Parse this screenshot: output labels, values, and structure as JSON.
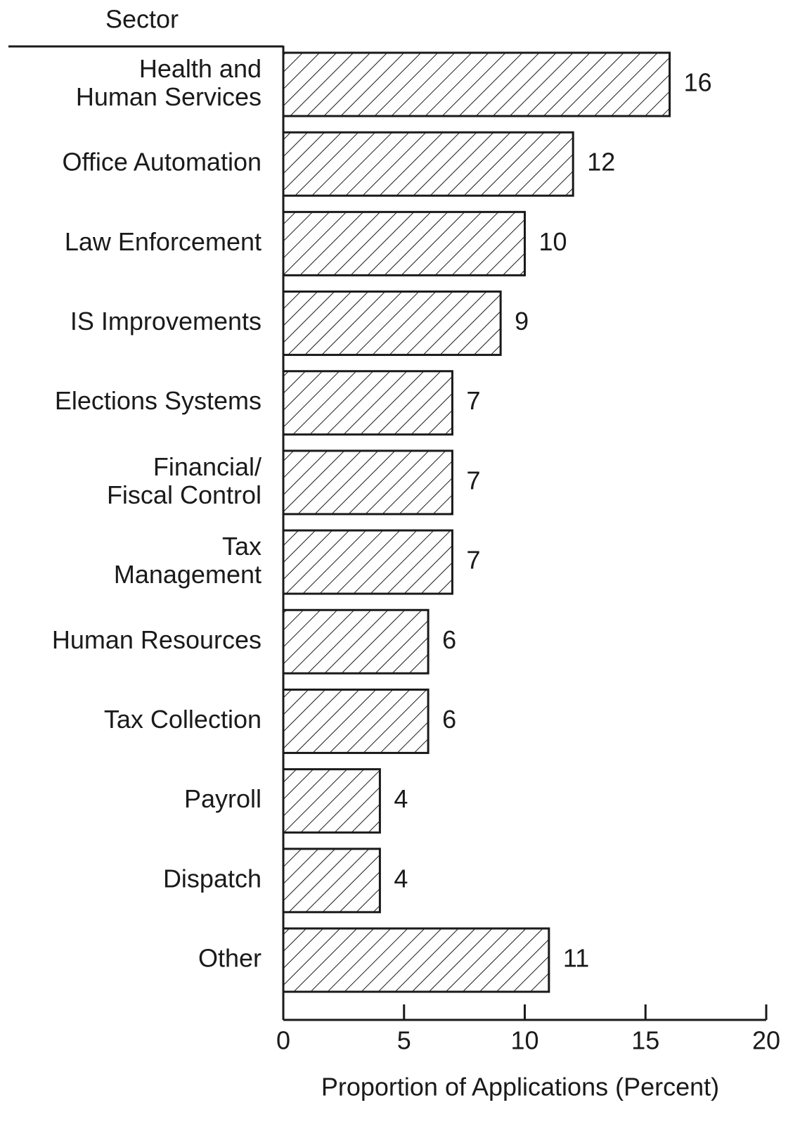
{
  "chart_data": {
    "type": "bar",
    "orientation": "horizontal",
    "category_axis_label": "Sector",
    "xlabel": "Proportion of Applications (Percent)",
    "categories": [
      "Health and\nHuman Services",
      "Office Automation",
      "Law Enforcement",
      "IS Improvements",
      "Elections Systems",
      "Financial/\nFiscal Control",
      "Tax\nManagement",
      "Human Resources",
      "Tax Collection",
      "Payroll",
      "Dispatch",
      "Other"
    ],
    "values": [
      16,
      12,
      10,
      9,
      7,
      7,
      7,
      6,
      6,
      4,
      4,
      11
    ],
    "color": "#1a1a1a",
    "hatch": true,
    "xlim": [
      0,
      20
    ],
    "xticks": [
      0,
      5,
      10,
      15,
      20
    ]
  }
}
